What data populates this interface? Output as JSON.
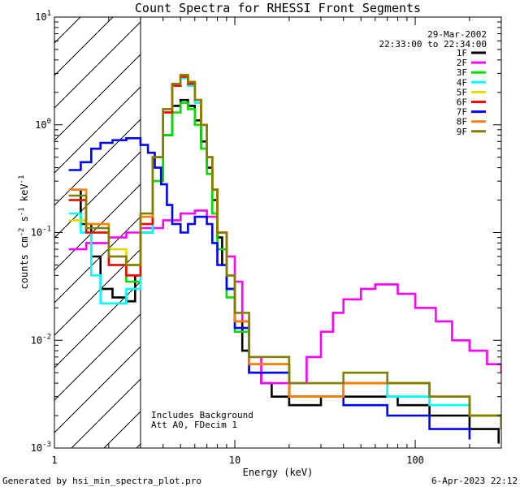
{
  "chart_data": {
    "type": "line",
    "title": "Count Spectra for RHESSI Front Segments",
    "xlabel": "Energy (keV)",
    "ylabel_parts": [
      "counts cm",
      "-2",
      " s",
      "-1",
      " keV",
      "-1"
    ],
    "xscale": "log",
    "yscale": "log",
    "xlim": [
      1,
      300
    ],
    "ylim": [
      0.001,
      10
    ],
    "x_tick_labels": [
      {
        "value": 1,
        "label": "1"
      },
      {
        "value": 10,
        "label": "10"
      },
      {
        "value": 100,
        "label": "100"
      }
    ],
    "y_tick_labels": [
      {
        "value": 10,
        "base": "10",
        "exp": "1"
      },
      {
        "value": 1,
        "base": "10",
        "exp": "0"
      },
      {
        "value": 0.1,
        "base": "10",
        "exp": "-1"
      },
      {
        "value": 0.01,
        "base": "10",
        "exp": "-2"
      },
      {
        "value": 0.001,
        "base": "10",
        "exp": "-3"
      }
    ],
    "shaded_region": {
      "x_from": 1,
      "x_to": 3,
      "style": "hatched"
    },
    "annotations": {
      "date": "29-Mar-2002",
      "time_range": "22:33:00 to 22:34:00",
      "note1": "Includes Background",
      "note2": "Att A0, FDecim 1"
    },
    "legend_position": "top-right",
    "series": [
      {
        "name": "1F",
        "color": "#000000",
        "points": [
          [
            1.2,
            0.25
          ],
          [
            1.4,
            0.12
          ],
          [
            1.6,
            0.06
          ],
          [
            1.8,
            0.03
          ],
          [
            2.1,
            0.025
          ],
          [
            2.5,
            0.023
          ],
          [
            2.8,
            0.04
          ],
          [
            3.0,
            0.1
          ],
          [
            3.5,
            0.3
          ],
          [
            4.0,
            0.8
          ],
          [
            4.5,
            1.5
          ],
          [
            5.0,
            1.7
          ],
          [
            5.5,
            1.5
          ],
          [
            6.0,
            1.1
          ],
          [
            6.5,
            0.7
          ],
          [
            7.0,
            0.4
          ],
          [
            7.5,
            0.2
          ],
          [
            8.0,
            0.09
          ],
          [
            8.5,
            0.05
          ],
          [
            9.0,
            0.03
          ],
          [
            10.0,
            0.015
          ],
          [
            11.0,
            0.008
          ],
          [
            12.0,
            0.005
          ],
          [
            14.0,
            0.004
          ],
          [
            16.0,
            0.003
          ],
          [
            20.0,
            0.0025
          ],
          [
            30.0,
            0.003
          ],
          [
            50.0,
            0.003
          ],
          [
            80.0,
            0.0025
          ],
          [
            120.0,
            0.002
          ],
          [
            200.0,
            0.0015
          ],
          [
            290.0,
            0.0011
          ]
        ]
      },
      {
        "name": "2F",
        "color": "#ff00ff",
        "points": [
          [
            1.2,
            0.07
          ],
          [
            1.5,
            0.08
          ],
          [
            2.0,
            0.09
          ],
          [
            2.5,
            0.1
          ],
          [
            3.0,
            0.11
          ],
          [
            4.0,
            0.13
          ],
          [
            5.0,
            0.15
          ],
          [
            6.0,
            0.16
          ],
          [
            7.0,
            0.14
          ],
          [
            8.0,
            0.1
          ],
          [
            9.0,
            0.06
          ],
          [
            10.0,
            0.035
          ],
          [
            11.0,
            0.015
          ],
          [
            12.0,
            0.007
          ],
          [
            14.0,
            0.004
          ],
          [
            18.0,
            0.004
          ],
          [
            25.0,
            0.007
          ],
          [
            30.0,
            0.012
          ],
          [
            35.0,
            0.018
          ],
          [
            40.0,
            0.024
          ],
          [
            50.0,
            0.03
          ],
          [
            60.0,
            0.033
          ],
          [
            80.0,
            0.027
          ],
          [
            100.0,
            0.02
          ],
          [
            130.0,
            0.015
          ],
          [
            160.0,
            0.01
          ],
          [
            200.0,
            0.008
          ],
          [
            250.0,
            0.006
          ],
          [
            300.0,
            0.005
          ]
        ]
      },
      {
        "name": "3F",
        "color": "#00e000",
        "points": [
          [
            1.2,
            0.2
          ],
          [
            1.5,
            0.1
          ],
          [
            2.0,
            0.05
          ],
          [
            2.5,
            0.035
          ],
          [
            3.0,
            0.1
          ],
          [
            3.5,
            0.3
          ],
          [
            4.0,
            0.8
          ],
          [
            4.5,
            1.3
          ],
          [
            5.0,
            1.6
          ],
          [
            5.5,
            1.4
          ],
          [
            6.0,
            1.0
          ],
          [
            6.5,
            0.6
          ],
          [
            7.0,
            0.35
          ],
          [
            7.5,
            0.15
          ],
          [
            8.0,
            0.07
          ],
          [
            9.0,
            0.025
          ],
          [
            10.0,
            0.012
          ],
          [
            12.0,
            0.005
          ],
          [
            20.0,
            0.003
          ],
          [
            40.0,
            0.004
          ],
          [
            70.0,
            0.003
          ],
          [
            120.0,
            0.0025
          ],
          [
            200.0,
            0.002
          ],
          [
            300.0,
            0.0015
          ]
        ]
      },
      {
        "name": "4F",
        "color": "#00ffff",
        "points": [
          [
            1.2,
            0.15
          ],
          [
            1.4,
            0.1
          ],
          [
            1.6,
            0.04
          ],
          [
            1.8,
            0.022
          ],
          [
            2.1,
            0.022
          ],
          [
            2.5,
            0.03
          ],
          [
            3.0,
            0.1
          ],
          [
            3.5,
            0.5
          ],
          [
            4.0,
            1.3
          ],
          [
            4.5,
            2.3
          ],
          [
            5.0,
            2.7
          ],
          [
            5.5,
            2.3
          ],
          [
            6.0,
            1.6
          ],
          [
            6.5,
            1.0
          ],
          [
            7.0,
            0.5
          ],
          [
            7.5,
            0.25
          ],
          [
            8.0,
            0.1
          ],
          [
            9.0,
            0.04
          ],
          [
            10.0,
            0.015
          ],
          [
            12.0,
            0.005
          ],
          [
            20.0,
            0.003
          ],
          [
            40.0,
            0.004
          ],
          [
            70.0,
            0.003
          ],
          [
            120.0,
            0.0025
          ],
          [
            200.0,
            0.002
          ],
          [
            300.0,
            0.0015
          ]
        ]
      },
      {
        "name": "5F",
        "color": "#dddd00",
        "points": [
          [
            1.2,
            0.13
          ],
          [
            1.5,
            0.12
          ],
          [
            2.0,
            0.07
          ],
          [
            2.5,
            0.05
          ],
          [
            3.0,
            0.12
          ],
          [
            3.5,
            0.5
          ],
          [
            4.0,
            1.3
          ],
          [
            4.5,
            2.3
          ],
          [
            5.0,
            2.8
          ],
          [
            5.5,
            2.4
          ],
          [
            6.0,
            1.7
          ],
          [
            6.5,
            1.0
          ],
          [
            7.0,
            0.5
          ],
          [
            7.5,
            0.25
          ],
          [
            8.0,
            0.1
          ],
          [
            9.0,
            0.04
          ],
          [
            10.0,
            0.015
          ],
          [
            12.0,
            0.006
          ],
          [
            20.0,
            0.003
          ],
          [
            40.0,
            0.005
          ],
          [
            70.0,
            0.004
          ],
          [
            120.0,
            0.003
          ],
          [
            200.0,
            0.002
          ],
          [
            300.0,
            0.0015
          ]
        ]
      },
      {
        "name": "6F",
        "color": "#ff0000",
        "points": [
          [
            1.2,
            0.2
          ],
          [
            1.5,
            0.1
          ],
          [
            2.0,
            0.05
          ],
          [
            2.5,
            0.04
          ],
          [
            3.0,
            0.12
          ],
          [
            3.5,
            0.5
          ],
          [
            4.0,
            1.3
          ],
          [
            4.5,
            2.3
          ],
          [
            5.0,
            2.8
          ],
          [
            5.5,
            2.4
          ],
          [
            6.0,
            1.7
          ],
          [
            6.5,
            1.0
          ],
          [
            7.0,
            0.5
          ],
          [
            7.5,
            0.25
          ],
          [
            8.0,
            0.1
          ],
          [
            9.0,
            0.04
          ],
          [
            10.0,
            0.015
          ],
          [
            12.0,
            0.006
          ],
          [
            20.0,
            0.003
          ],
          [
            40.0,
            0.004
          ],
          [
            70.0,
            0.004
          ],
          [
            120.0,
            0.003
          ],
          [
            200.0,
            0.002
          ],
          [
            300.0,
            0.0015
          ]
        ]
      },
      {
        "name": "7F",
        "color": "#0000ff",
        "points": [
          [
            1.2,
            0.38
          ],
          [
            1.4,
            0.45
          ],
          [
            1.6,
            0.6
          ],
          [
            1.8,
            0.68
          ],
          [
            2.1,
            0.72
          ],
          [
            2.5,
            0.75
          ],
          [
            3.0,
            0.65
          ],
          [
            3.3,
            0.55
          ],
          [
            3.6,
            0.4
          ],
          [
            3.9,
            0.28
          ],
          [
            4.2,
            0.18
          ],
          [
            4.5,
            0.12
          ],
          [
            5.0,
            0.1
          ],
          [
            5.5,
            0.12
          ],
          [
            6.0,
            0.14
          ],
          [
            6.5,
            0.14
          ],
          [
            7.0,
            0.12
          ],
          [
            7.5,
            0.08
          ],
          [
            8.0,
            0.05
          ],
          [
            9.0,
            0.03
          ],
          [
            10.0,
            0.013
          ],
          [
            12.0,
            0.005
          ],
          [
            20.0,
            0.003
          ],
          [
            40.0,
            0.0025
          ],
          [
            70.0,
            0.002
          ],
          [
            120.0,
            0.0015
          ],
          [
            200.0,
            0.0012
          ]
        ]
      },
      {
        "name": "8F",
        "color": "#ff8000",
        "points": [
          [
            1.2,
            0.25
          ],
          [
            1.5,
            0.12
          ],
          [
            2.0,
            0.06
          ],
          [
            2.5,
            0.05
          ],
          [
            3.0,
            0.14
          ],
          [
            3.5,
            0.5
          ],
          [
            4.0,
            1.4
          ],
          [
            4.5,
            2.4
          ],
          [
            5.0,
            2.9
          ],
          [
            5.5,
            2.5
          ],
          [
            6.0,
            1.7
          ],
          [
            6.5,
            1.0
          ],
          [
            7.0,
            0.5
          ],
          [
            7.5,
            0.25
          ],
          [
            8.0,
            0.1
          ],
          [
            9.0,
            0.04
          ],
          [
            10.0,
            0.015
          ],
          [
            12.0,
            0.006
          ],
          [
            20.0,
            0.003
          ],
          [
            40.0,
            0.004
          ],
          [
            70.0,
            0.004
          ],
          [
            120.0,
            0.003
          ],
          [
            200.0,
            0.002
          ],
          [
            300.0,
            0.0015
          ]
        ]
      },
      {
        "name": "9F",
        "color": "#808000",
        "points": [
          [
            1.2,
            0.22
          ],
          [
            1.5,
            0.11
          ],
          [
            2.0,
            0.06
          ],
          [
            2.5,
            0.05
          ],
          [
            3.0,
            0.15
          ],
          [
            3.5,
            0.5
          ],
          [
            4.0,
            1.4
          ],
          [
            4.5,
            2.4
          ],
          [
            5.0,
            2.9
          ],
          [
            5.5,
            2.5
          ],
          [
            6.0,
            1.7
          ],
          [
            6.5,
            1.0
          ],
          [
            7.0,
            0.5
          ],
          [
            7.5,
            0.25
          ],
          [
            8.0,
            0.1
          ],
          [
            9.0,
            0.04
          ],
          [
            10.0,
            0.018
          ],
          [
            12.0,
            0.007
          ],
          [
            20.0,
            0.004
          ],
          [
            40.0,
            0.005
          ],
          [
            70.0,
            0.004
          ],
          [
            120.0,
            0.003
          ],
          [
            200.0,
            0.002
          ],
          [
            300.0,
            0.0015
          ]
        ]
      }
    ]
  },
  "footer": {
    "left": "Generated by hsi_min_spectra_plot.pro",
    "right": "6-Apr-2023 22:12"
  }
}
